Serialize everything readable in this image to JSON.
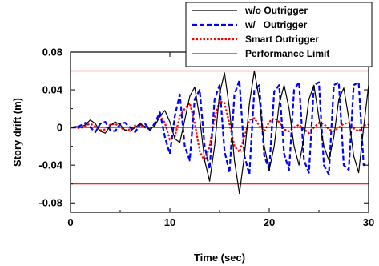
{
  "chart_data": {
    "type": "line",
    "xlabel": "Time (sec)",
    "ylabel": "Story drift (m)",
    "xlim": [
      0,
      30
    ],
    "ylim": [
      -0.09,
      0.08
    ],
    "xticks": [
      0,
      10,
      20,
      30
    ],
    "xtick_labels": [
      "0",
      "10",
      "20",
      "30"
    ],
    "yticks": [
      -0.08,
      -0.04,
      0,
      0.04,
      0.08
    ],
    "ytick_labels": [
      "-0.08",
      "-0.04",
      "0",
      "0.04",
      "0.08"
    ],
    "grid": false,
    "legend_position": "top-right",
    "series": [
      {
        "name": "w/o Outrigger",
        "color": "#000000",
        "style": "solid",
        "x": [
          0,
          0.5,
          1,
          1.5,
          2,
          2.5,
          3,
          3.5,
          4,
          4.5,
          5,
          5.5,
          6,
          6.5,
          7,
          7.5,
          8,
          8.5,
          9,
          9.5,
          10,
          10.5,
          11,
          11.5,
          12,
          12.5,
          13,
          13.5,
          14,
          14.5,
          15,
          15.5,
          16,
          16.5,
          17,
          17.5,
          18,
          18.5,
          19,
          19.5,
          20,
          20.5,
          21,
          21.5,
          22,
          22.5,
          23,
          23.5,
          24,
          24.5,
          25,
          25.5,
          26,
          26.5,
          27,
          27.5,
          28,
          28.5,
          29,
          29.5,
          30
        ],
        "values": [
          0,
          0.001,
          0,
          0.003,
          0.008,
          0.004,
          -0.004,
          -0.006,
          0.002,
          0.006,
          0.003,
          -0.003,
          -0.004,
          0,
          0.004,
          0.001,
          -0.002,
          0.002,
          0.012,
          0.018,
          0.006,
          -0.012,
          -0.016,
          0.008,
          0.033,
          0.043,
          0.01,
          -0.035,
          -0.057,
          -0.02,
          0.036,
          0.058,
          0.02,
          -0.035,
          -0.07,
          -0.03,
          0.025,
          0.06,
          0.03,
          -0.02,
          -0.045,
          -0.02,
          0.025,
          0.045,
          0.02,
          -0.02,
          -0.04,
          -0.01,
          0.03,
          0.045,
          0.01,
          -0.02,
          -0.035,
          -0.01,
          0.03,
          0.042,
          0.01,
          -0.03,
          -0.048,
          0,
          0.045
        ]
      },
      {
        "name": "w/   Outrigger",
        "color": "#0000ff",
        "style": "dashed",
        "x": [
          0,
          0.5,
          1,
          1.5,
          2,
          2.5,
          3,
          3.5,
          4,
          4.5,
          5,
          5.5,
          6,
          6.5,
          7,
          7.5,
          8,
          8.5,
          9,
          9.5,
          10,
          10.5,
          11,
          11.5,
          12,
          12.5,
          13,
          13.5,
          14,
          14.5,
          15,
          15.5,
          16,
          16.5,
          17,
          17.5,
          18,
          18.5,
          19,
          19.5,
          20,
          20.5,
          21,
          21.5,
          22,
          22.5,
          23,
          23.5,
          24,
          24.5,
          25,
          25.5,
          26,
          26.5,
          27,
          27.5,
          28,
          28.5,
          29,
          29.5,
          30
        ],
        "values": [
          0,
          0,
          0.002,
          0.005,
          0,
          -0.005,
          0.004,
          0.006,
          -0.003,
          -0.004,
          0.004,
          0.005,
          0,
          -0.005,
          0.003,
          0.004,
          -0.003,
          0.005,
          0.016,
          -0.01,
          -0.028,
          0.012,
          0.035,
          -0.02,
          -0.035,
          0.03,
          0.04,
          -0.02,
          -0.044,
          0.03,
          0.045,
          -0.025,
          -0.048,
          0.035,
          0.05,
          -0.03,
          -0.05,
          0.04,
          0.045,
          -0.03,
          -0.045,
          0.038,
          0.045,
          -0.028,
          -0.045,
          0.04,
          0.048,
          -0.035,
          -0.048,
          0.045,
          0.048,
          -0.04,
          -0.05,
          0.045,
          0.048,
          -0.04,
          -0.045,
          0.045,
          0.048,
          -0.04,
          -0.038
        ]
      },
      {
        "name": "Smart Outrigger",
        "color": "#ff0000",
        "style": "dotted",
        "x": [
          0,
          0.5,
          1,
          1.5,
          2,
          2.5,
          3,
          3.5,
          4,
          4.5,
          5,
          5.5,
          6,
          6.5,
          7,
          7.5,
          8,
          8.5,
          9,
          9.5,
          10,
          10.5,
          11,
          11.5,
          12,
          12.5,
          13,
          13.5,
          14,
          14.5,
          15,
          15.5,
          16,
          16.5,
          17,
          17.5,
          18,
          18.5,
          19,
          19.5,
          20,
          20.5,
          21,
          21.5,
          22,
          22.5,
          23,
          23.5,
          24,
          24.5,
          25,
          25.5,
          26,
          26.5,
          27,
          27.5,
          28,
          28.5,
          29,
          29.5,
          30
        ],
        "values": [
          0,
          0,
          -0.001,
          0.002,
          0.004,
          0.001,
          -0.003,
          -0.002,
          0.003,
          0.004,
          0,
          -0.003,
          -0.002,
          0.002,
          0.003,
          0,
          -0.002,
          0.004,
          0.012,
          0.005,
          -0.013,
          -0.01,
          0.012,
          0.02,
          0.026,
          0.005,
          -0.025,
          -0.036,
          -0.02,
          0.01,
          0.028,
          0.026,
          0.004,
          -0.02,
          -0.026,
          -0.01,
          0.008,
          0.01,
          0.002,
          -0.004,
          0.006,
          0.01,
          0.006,
          -0.002,
          -0.004,
          0,
          0.003,
          -0.002,
          -0.006,
          0,
          0.005,
          0.004,
          -0.002,
          -0.004,
          0,
          0.004,
          0.005,
          -0.001,
          -0.004,
          0.002,
          0.003
        ]
      },
      {
        "name": "Performance Limit",
        "color": "#ff0000",
        "style": "solid",
        "x": [
          0,
          30
        ],
        "values": [
          0.06,
          0.06
        ],
        "values_lower": [
          -0.06,
          -0.06
        ]
      }
    ]
  }
}
